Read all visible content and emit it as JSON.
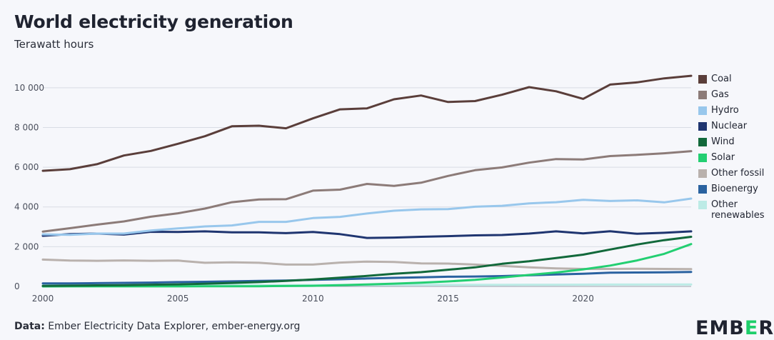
{
  "header": {
    "title": "World electricity generation",
    "subtitle": "Terawatt hours"
  },
  "footer": {
    "source_label": "Data:",
    "source_text": "Ember Electricity Data Explorer, ember-energy.org"
  },
  "logo": {
    "text_before": "EMB",
    "text_accent": "E",
    "text_after": "R",
    "accent_color": "#1ecf6b"
  },
  "chart_data": {
    "type": "line",
    "title": "World electricity generation",
    "subtitle": "Terawatt hours",
    "xlabel": "",
    "ylabel": "Terawatt hours",
    "xlim": [
      2000,
      2024
    ],
    "ylim": [
      0,
      11000
    ],
    "x_ticks": [
      2000,
      2005,
      2010,
      2015,
      2020
    ],
    "x_tick_labels": [
      "2000",
      "2005",
      "2010",
      "2015",
      "2020"
    ],
    "y_ticks": [
      0,
      2000,
      4000,
      6000,
      8000,
      10000
    ],
    "y_tick_labels": [
      "0",
      "2 000",
      "4 000",
      "6 000",
      "8 000",
      "10 000"
    ],
    "grid": true,
    "legend_position": "right",
    "x": [
      2000,
      2001,
      2002,
      2003,
      2004,
      2005,
      2006,
      2007,
      2008,
      2009,
      2010,
      2011,
      2012,
      2013,
      2014,
      2015,
      2016,
      2017,
      2018,
      2019,
      2020,
      2021,
      2022,
      2023,
      2024
    ],
    "series": [
      {
        "name": "Coal",
        "color": "#5a3e3a",
        "values": [
          5820,
          5900,
          6150,
          6590,
          6820,
          7180,
          7560,
          8060,
          8090,
          7960,
          8460,
          8910,
          8960,
          9420,
          9610,
          9280,
          9330,
          9650,
          10030,
          9820,
          9440,
          10160,
          10270,
          10470,
          10600
        ]
      },
      {
        "name": "Gas",
        "color": "#8c7b78",
        "values": [
          2760,
          2930,
          3110,
          3270,
          3510,
          3680,
          3920,
          4240,
          4380,
          4390,
          4820,
          4870,
          5160,
          5060,
          5220,
          5560,
          5850,
          5990,
          6230,
          6410,
          6390,
          6560,
          6620,
          6700,
          6810
        ]
      },
      {
        "name": "Hydro",
        "color": "#98c7ec",
        "values": [
          2620,
          2600,
          2660,
          2660,
          2810,
          2920,
          3020,
          3070,
          3250,
          3250,
          3440,
          3500,
          3670,
          3810,
          3880,
          3890,
          4010,
          4060,
          4180,
          4240,
          4360,
          4300,
          4330,
          4230,
          4420
        ]
      },
      {
        "name": "Nuclear",
        "color": "#1f3570",
        "values": [
          2550,
          2630,
          2660,
          2610,
          2750,
          2740,
          2770,
          2720,
          2720,
          2680,
          2740,
          2630,
          2440,
          2460,
          2500,
          2530,
          2570,
          2590,
          2660,
          2770,
          2670,
          2780,
          2650,
          2700,
          2770
        ]
      },
      {
        "name": "Wind",
        "color": "#12693b",
        "values": [
          30,
          40,
          55,
          65,
          85,
          105,
          135,
          175,
          220,
          280,
          350,
          440,
          530,
          640,
          720,
          840,
          960,
          1140,
          1270,
          1430,
          1600,
          1860,
          2110,
          2330,
          2500
        ]
      },
      {
        "name": "Solar",
        "color": "#23cf72",
        "values": [
          1,
          2,
          2,
          3,
          4,
          5,
          6,
          7,
          12,
          20,
          33,
          65,
          100,
          140,
          190,
          250,
          330,
          450,
          580,
          700,
          860,
          1050,
          1310,
          1640,
          2130
        ]
      },
      {
        "name": "Other fossil",
        "color": "#b9b1ad",
        "values": [
          1350,
          1300,
          1290,
          1310,
          1290,
          1300,
          1190,
          1210,
          1190,
          1100,
          1100,
          1200,
          1250,
          1230,
          1160,
          1150,
          1100,
          1030,
          960,
          910,
          880,
          880,
          890,
          880,
          870
        ]
      },
      {
        "name": "Bioenergy",
        "color": "#2a62a0",
        "values": [
          150,
          155,
          165,
          180,
          195,
          220,
          235,
          255,
          280,
          300,
          330,
          360,
          400,
          430,
          460,
          490,
          500,
          520,
          560,
          600,
          640,
          690,
          700,
          710,
          730
        ]
      },
      {
        "name": "Other renewables",
        "color": "#bcebe6",
        "values": [
          55,
          57,
          58,
          60,
          62,
          64,
          65,
          67,
          68,
          69,
          70,
          72,
          73,
          75,
          78,
          80,
          82,
          84,
          86,
          88,
          90,
          92,
          94,
          96,
          98
        ]
      }
    ]
  }
}
